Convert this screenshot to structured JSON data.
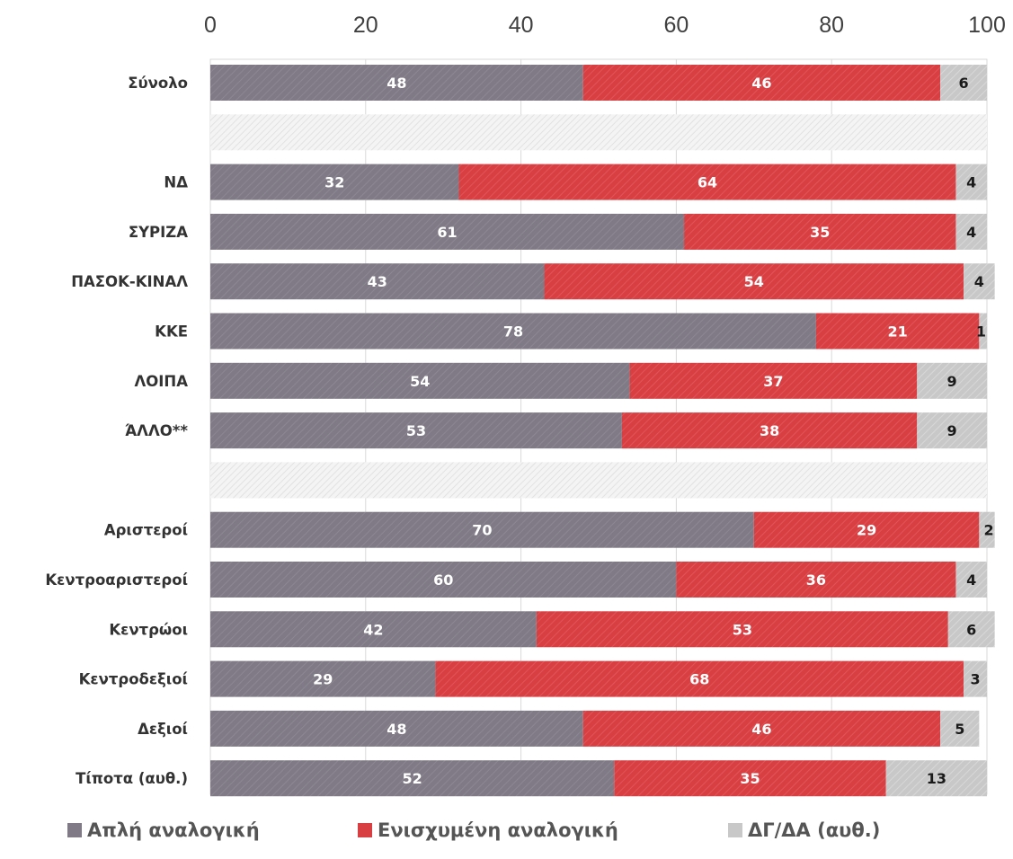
{
  "chart_data": {
    "type": "bar",
    "orientation": "horizontal",
    "stacked": true,
    "xlim": [
      0,
      100
    ],
    "x_ticks": [
      "0",
      "20",
      "40",
      "60",
      "80",
      "100"
    ],
    "grid": true,
    "legend_position": "bottom",
    "categories": [
      "Σύνολο",
      "",
      "ΝΔ",
      "ΣΥΡΙΖΑ",
      "ΠΑΣΟΚ-ΚΙΝΑΛ",
      "ΚΚΕ",
      "ΛΟΙΠΑ",
      "ΆΛΛΟ**",
      "",
      "Αριστεροί",
      "Κεντροαριστεροί",
      "Κεντρώοι",
      "Κεντροδεξιοί",
      "Δεξιοί",
      "Τίποτα (αυθ.)"
    ],
    "series": [
      {
        "name": "Απλή αναλογική",
        "color": "#7f7a85",
        "values": [
          48,
          null,
          32,
          61,
          43,
          78,
          54,
          53,
          null,
          70,
          60,
          42,
          29,
          48,
          52
        ]
      },
      {
        "name": "Ενισχυμένη αναλογική",
        "color": "#d83f43",
        "values": [
          46,
          null,
          64,
          35,
          54,
          21,
          37,
          38,
          null,
          29,
          36,
          53,
          68,
          46,
          35
        ]
      },
      {
        "name": "ΔΓ/ΔΑ (αυθ.)",
        "color": "#c8c8c8",
        "values": [
          6,
          null,
          4,
          4,
          4,
          1,
          9,
          9,
          null,
          2,
          4,
          6,
          3,
          5,
          13
        ]
      }
    ]
  }
}
